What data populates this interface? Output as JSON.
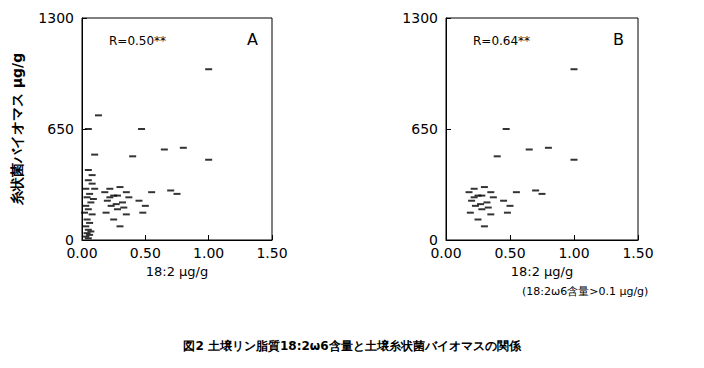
{
  "caption": "図2 土壌リン脂質18:2ω6含量と土壌糸状菌バイオマスの関係",
  "chart_data": [
    {
      "type": "scatter",
      "title": "A",
      "annotation": "R=0.50**",
      "x_label": "18:2 μg/g",
      "y_label": "糸状菌バイオマス μg/g",
      "xlim": [
        0,
        1.5
      ],
      "ylim": [
        0,
        1300
      ],
      "xticks": [
        {
          "value": 0,
          "label": "0.00"
        },
        {
          "value": 0.5,
          "label": "0.50"
        },
        {
          "value": 1,
          "label": "1.00"
        },
        {
          "value": 1.5,
          "label": "1.50"
        }
      ],
      "yticks": [
        0,
        650,
        1300
      ],
      "color": "#000000",
      "marker": "dash",
      "x": [
        0.13,
        0.05,
        0.1,
        0.05,
        0.08,
        0.05,
        0.08,
        0.1,
        0.03,
        0.06,
        0.04,
        0.07,
        0.03,
        0.05,
        0.08,
        0.04,
        0.06,
        0.03,
        0.05,
        0.04,
        0.06,
        0.03,
        0.05,
        0.07,
        0.09,
        0.02,
        1.0,
        0.47,
        0.4,
        1.0,
        0.8,
        0.65,
        0.7,
        0.55,
        0.75,
        0.45,
        0.5,
        0.48,
        0.18,
        0.22,
        0.25,
        0.3,
        0.35,
        0.37,
        0.2,
        0.23,
        0.27,
        0.32,
        0.28,
        0.19,
        0.25,
        0.3,
        0.35,
        0.22,
        0.28,
        0.33
      ],
      "values": [
        730,
        650,
        500,
        410,
        380,
        350,
        330,
        300,
        300,
        270,
        250,
        220,
        200,
        180,
        150,
        120,
        100,
        80,
        60,
        40,
        30,
        20,
        10,
        50,
        240,
        160,
        1000,
        650,
        490,
        470,
        540,
        530,
        290,
        280,
        270,
        230,
        200,
        160,
        280,
        300,
        260,
        310,
        280,
        250,
        230,
        200,
        210,
        220,
        180,
        160,
        120,
        80,
        150,
        250,
        260,
        190
      ]
    },
    {
      "type": "scatter",
      "title": "B",
      "annotation": "R=0.64**",
      "x_label": "18:2 μg/g",
      "note": "(18:2ω6含量>0.1 μg/g)",
      "xlim": [
        0,
        1.5
      ],
      "ylim": [
        0,
        1300
      ],
      "xticks": [
        {
          "value": 0,
          "label": "0.00"
        },
        {
          "value": 0.5,
          "label": "0.50"
        },
        {
          "value": 1,
          "label": "1.00"
        },
        {
          "value": 1.5,
          "label": "1.50"
        }
      ],
      "yticks": [
        0,
        650,
        1300
      ],
      "color": "#000000",
      "marker": "dash",
      "x": [
        1.0,
        0.47,
        0.4,
        1.0,
        0.8,
        0.65,
        0.7,
        0.55,
        0.75,
        0.45,
        0.5,
        0.48,
        0.18,
        0.22,
        0.25,
        0.3,
        0.35,
        0.37,
        0.2,
        0.23,
        0.27,
        0.32,
        0.28,
        0.19,
        0.25,
        0.3,
        0.35,
        0.22,
        0.28,
        0.33
      ],
      "values": [
        1000,
        650,
        490,
        470,
        540,
        530,
        290,
        280,
        270,
        230,
        200,
        160,
        280,
        300,
        260,
        310,
        280,
        250,
        230,
        200,
        210,
        220,
        180,
        160,
        120,
        80,
        150,
        250,
        260,
        190
      ]
    }
  ]
}
